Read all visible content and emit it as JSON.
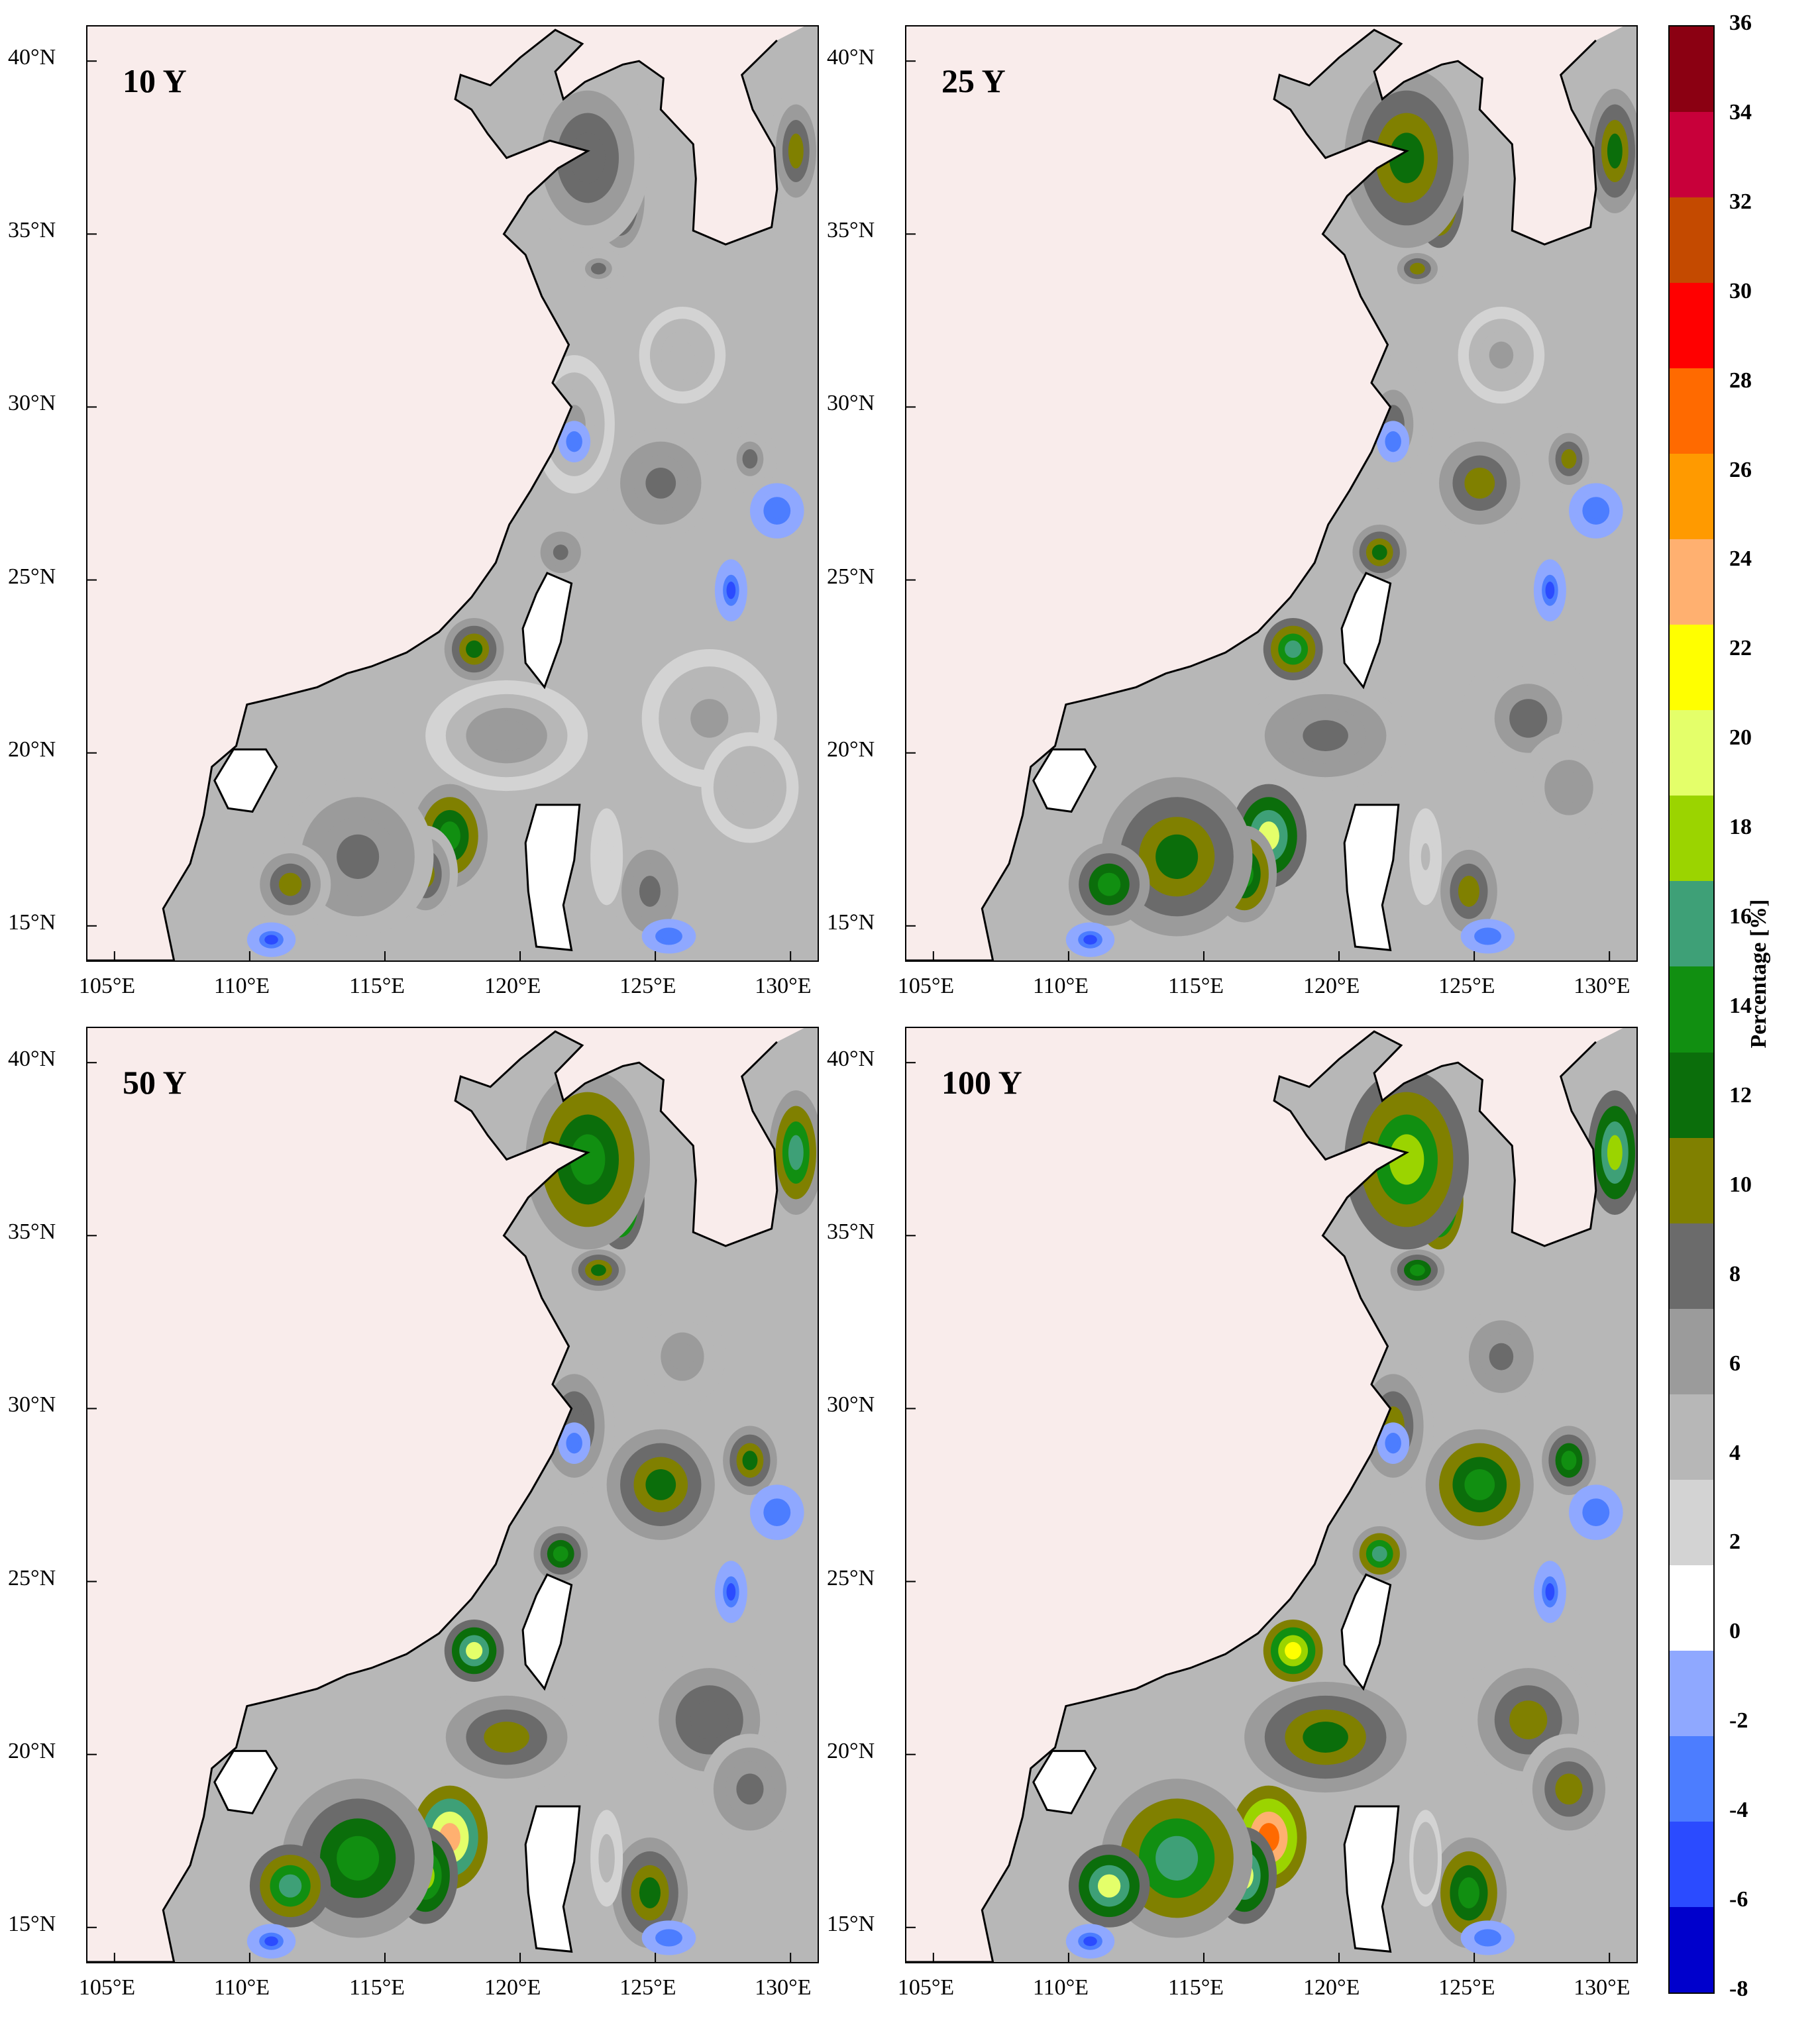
{
  "panels": [
    {
      "title": "10 Y",
      "intensity": 0.55
    },
    {
      "title": "25 Y",
      "intensity": 0.8
    },
    {
      "title": "50 Y",
      "intensity": 1.0
    },
    {
      "title": "100 Y",
      "intensity": 1.15
    }
  ],
  "axes": {
    "lat_labels": [
      "40°N",
      "35°N",
      "30°N",
      "25°N",
      "20°N",
      "15°N"
    ],
    "lon_labels": [
      "105°E",
      "110°E",
      "115°E",
      "120°E",
      "125°E",
      "130°E"
    ],
    "lat_values": [
      40,
      35,
      30,
      25,
      20,
      15
    ],
    "lon_values": [
      105,
      110,
      115,
      120,
      125,
      130
    ],
    "lat_range": [
      14,
      41
    ],
    "lon_range": [
      104,
      131
    ]
  },
  "colorbar": {
    "title": "Percentage [%]",
    "ticks": [
      "36",
      "34",
      "32",
      "30",
      "28",
      "26",
      "24",
      "22",
      "20",
      "18",
      "16",
      "14",
      "12",
      "10",
      "8",
      "6",
      "4",
      "2",
      "0",
      "-2",
      "-4",
      "-6",
      "-8"
    ],
    "colors": [
      "#8b0012",
      "#c8003a",
      "#c44a00",
      "#ff0000",
      "#ff6a00",
      "#ff9a00",
      "#ffb070",
      "#ffff00",
      "#e4ff6a",
      "#9bd400",
      "#3ea077",
      "#118f11",
      "#0b6e0b",
      "#808000",
      "#6b6b6b",
      "#9b9b9b",
      "#b7b7b7",
      "#d3d3d3",
      "#ffffff",
      "#8fa8ff",
      "#4c7dff",
      "#2b4bff",
      "#0000cc"
    ]
  }
}
